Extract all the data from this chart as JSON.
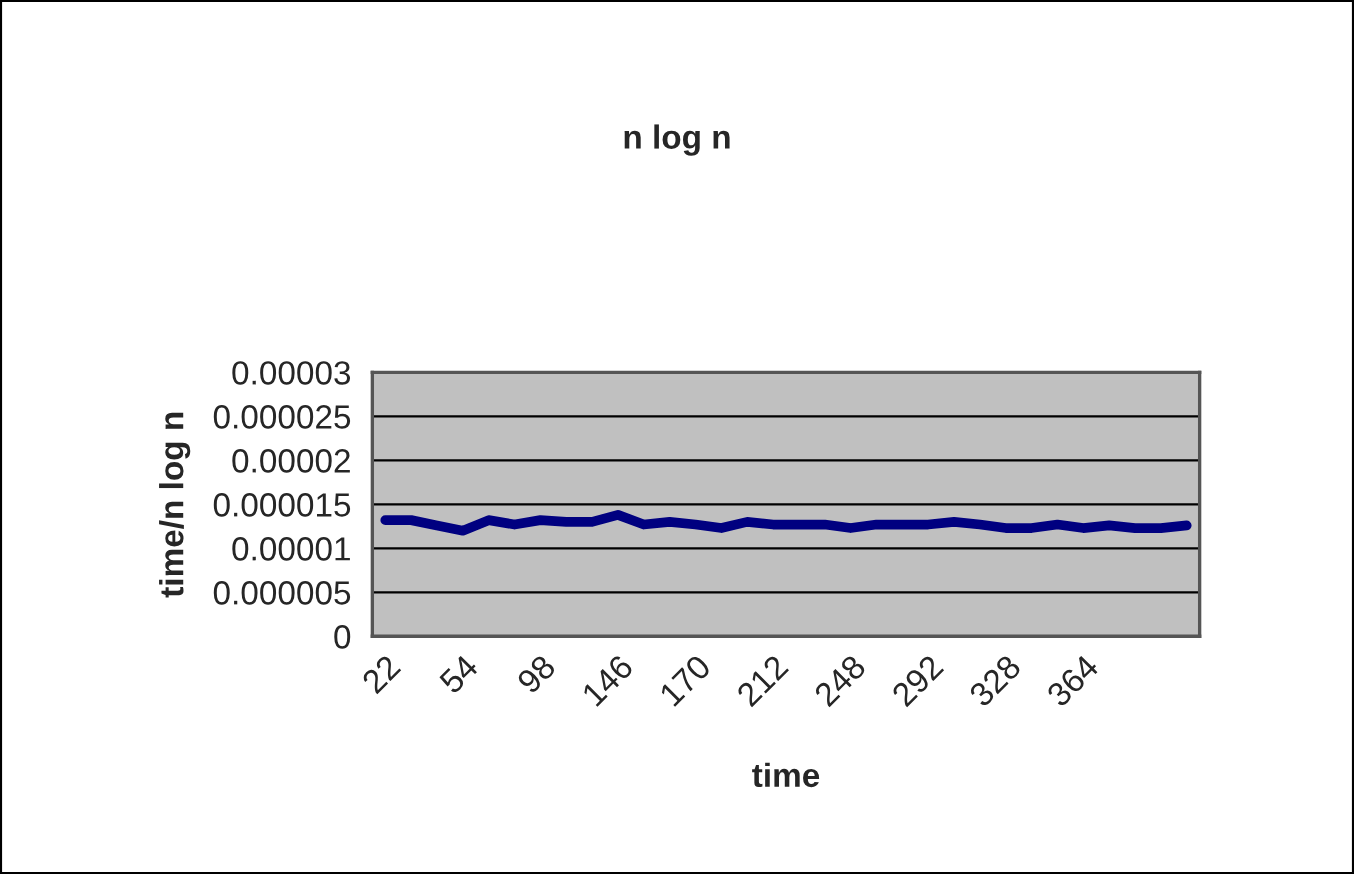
{
  "chart_data": {
    "type": "line",
    "title": "n log n",
    "xlabel": "time",
    "ylabel": "time/n log n",
    "categories": [
      "22",
      null,
      null,
      "54",
      null,
      null,
      "98",
      null,
      null,
      "146",
      null,
      null,
      "170",
      null,
      null,
      "212",
      null,
      null,
      "248",
      null,
      null,
      "292",
      null,
      null,
      "328",
      null,
      null,
      "364",
      null,
      null,
      null,
      null
    ],
    "series": [
      {
        "color": "#000080",
        "values": [
          1.32e-05,
          1.32e-05,
          1.26e-05,
          1.2e-05,
          1.32e-05,
          1.27e-05,
          1.32e-05,
          1.3e-05,
          1.3e-05,
          1.38e-05,
          1.27e-05,
          1.3e-05,
          1.27e-05,
          1.23e-05,
          1.3e-05,
          1.27e-05,
          1.27e-05,
          1.27e-05,
          1.23e-05,
          1.27e-05,
          1.27e-05,
          1.27e-05,
          1.3e-05,
          1.27e-05,
          1.23e-05,
          1.23e-05,
          1.27e-05,
          1.23e-05,
          1.26e-05,
          1.23e-05,
          1.23e-05,
          1.26e-05
        ]
      }
    ],
    "ylim": [
      0,
      3e-05
    ],
    "yticks": [
      {
        "value": 0,
        "label": "0"
      },
      {
        "value": 5e-06,
        "label": "0.000005"
      },
      {
        "value": 1e-05,
        "label": "0.00001"
      },
      {
        "value": 1.5e-05,
        "label": "0.000015"
      },
      {
        "value": 2e-05,
        "label": "0.00002"
      },
      {
        "value": 2.5e-05,
        "label": "0.000025"
      },
      {
        "value": 3e-05,
        "label": "0.00003"
      }
    ],
    "grid": "y",
    "legend": false,
    "marker": "none",
    "line_style": "solid"
  }
}
